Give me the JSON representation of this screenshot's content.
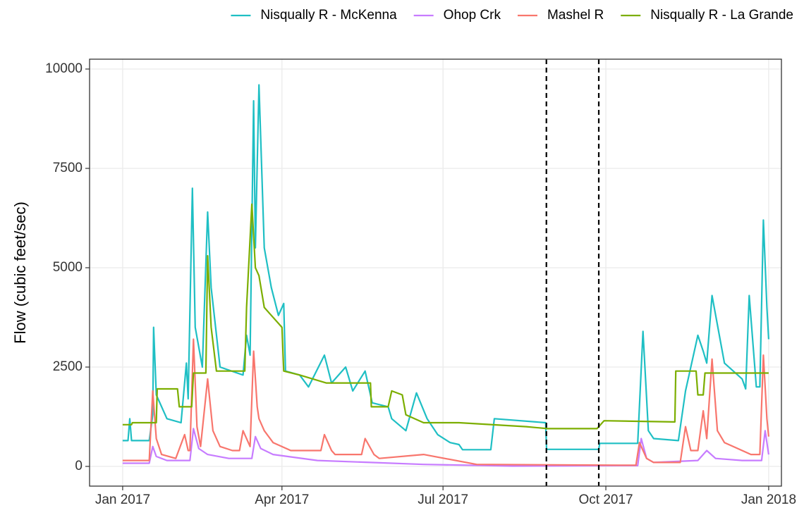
{
  "chart_data": {
    "type": "line",
    "ylabel": "Flow (cubic feet/sec)",
    "legend": "top",
    "grid": true,
    "xlim": [
      -18.7,
      372.2
    ],
    "ylim": [
      -496,
      10248
    ],
    "xticks": [
      {
        "value": 0,
        "label": "Jan 2017"
      },
      {
        "value": 90,
        "label": "Apr 2017"
      },
      {
        "value": 181,
        "label": "Jul 2017"
      },
      {
        "value": 273,
        "label": "Oct 2017"
      },
      {
        "value": 365,
        "label": "Jan 2018"
      }
    ],
    "yticks": [
      0,
      2500,
      5000,
      7500,
      10000
    ],
    "vlines": [
      239.4,
      269
    ],
    "series": [
      {
        "name": "Nisqually R - McKenna",
        "color": "#1fbfc4",
        "x": [
          0,
          3,
          4,
          5,
          15,
          17,
          17.5,
          19,
          25,
          33,
          36,
          37,
          39.4,
          41,
          45,
          48,
          50,
          55,
          68,
          70,
          72,
          74,
          75,
          77,
          80,
          84,
          88,
          91,
          92,
          100,
          105,
          114,
          118,
          126,
          130,
          137,
          141,
          150,
          152,
          160,
          166,
          172,
          178,
          185,
          190,
          192,
          208,
          210,
          239,
          239.5,
          269,
          269.5,
          291,
          294,
          297,
          300,
          314,
          318,
          325,
          328,
          330,
          333,
          340,
          350,
          352,
          354,
          358,
          360,
          362,
          364,
          365
        ],
        "values": [
          650,
          650,
          1200,
          650,
          650,
          1300,
          3500,
          1800,
          1200,
          1100,
          2600,
          1700,
          7000,
          3500,
          2500,
          6400,
          4500,
          2500,
          2300,
          3300,
          2800,
          9200,
          5500,
          9600,
          5500,
          4500,
          3800,
          4100,
          2400,
          2300,
          2000,
          2800,
          2100,
          2500,
          1900,
          2400,
          1600,
          1500,
          1200,
          900,
          1850,
          1200,
          800,
          600,
          550,
          420,
          420,
          1200,
          1100,
          430,
          430,
          580,
          580,
          3400,
          900,
          700,
          650,
          1900,
          3300,
          2900,
          2600,
          4300,
          2600,
          2200,
          1950,
          4300,
          2000,
          2000,
          6200,
          4000,
          3200
        ]
      },
      {
        "name": "Ohop Crk",
        "color": "#c77cff",
        "x": [
          0,
          15,
          17,
          19,
          25,
          38,
          40,
          43,
          48,
          60,
          73,
          75,
          78,
          85,
          110,
          140,
          170,
          220,
          280,
          291,
          293,
          296,
          300,
          325,
          330,
          335,
          350,
          361,
          363,
          365
        ],
        "values": [
          80,
          80,
          500,
          250,
          150,
          150,
          950,
          450,
          300,
          200,
          200,
          750,
          450,
          300,
          150,
          100,
          50,
          10,
          20,
          20,
          700,
          200,
          100,
          150,
          400,
          200,
          150,
          150,
          900,
          300
        ]
      },
      {
        "name": "Mashel R",
        "color": "#f8766d",
        "x": [
          0,
          15,
          17,
          19,
          22,
          30,
          35,
          37,
          38,
          40,
          42,
          44,
          48,
          51,
          55,
          62,
          66,
          68,
          72,
          74,
          76,
          77,
          80,
          85,
          95,
          112,
          114,
          118,
          120,
          135,
          137,
          142,
          145,
          170,
          200,
          280,
          290,
          292,
          296,
          300,
          315,
          318,
          321,
          325,
          328,
          330,
          333,
          336,
          340,
          355,
          360,
          362,
          364,
          365
        ],
        "values": [
          150,
          150,
          1900,
          700,
          300,
          200,
          800,
          400,
          400,
          3200,
          1000,
          500,
          2200,
          900,
          500,
          400,
          400,
          900,
          500,
          2900,
          1500,
          1200,
          900,
          600,
          400,
          400,
          800,
          400,
          300,
          300,
          700,
          300,
          200,
          300,
          50,
          30,
          30,
          600,
          200,
          100,
          100,
          1000,
          400,
          400,
          1400,
          700,
          2700,
          900,
          600,
          300,
          300,
          2800,
          1200,
          750
        ]
      },
      {
        "name": "Nisqually R - La Grande",
        "color": "#7cae00",
        "x": [
          0,
          5,
          5.5,
          19,
          19.5,
          31,
          32,
          39,
          40,
          47,
          48,
          50,
          53,
          69,
          70,
          73,
          75,
          77,
          80,
          88,
          90,
          91,
          100,
          115,
          140,
          140.5,
          150,
          152,
          158,
          160,
          170,
          190,
          228,
          240,
          268,
          269,
          272,
          312,
          312.5,
          324,
          325,
          328,
          329,
          365
        ],
        "values": [
          1050,
          1050,
          1100,
          1100,
          1950,
          1950,
          1500,
          1500,
          2350,
          2350,
          5300,
          3500,
          2400,
          2400,
          4000,
          6600,
          5000,
          4800,
          4000,
          3600,
          3500,
          2400,
          2300,
          2100,
          2100,
          1500,
          1500,
          1900,
          1800,
          1300,
          1100,
          1100,
          1000,
          950,
          950,
          1000,
          1150,
          1120,
          2400,
          2400,
          1800,
          1800,
          2350,
          2350
        ]
      }
    ]
  }
}
